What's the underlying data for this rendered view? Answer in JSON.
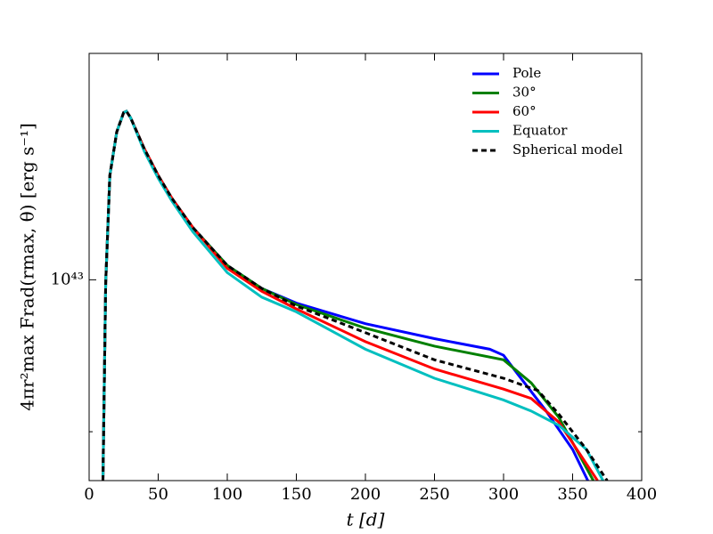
{
  "chart_data": {
    "type": "line",
    "xlabel": "t [d]",
    "ylabel": "4πr²max Frad(rmax, θ) [erg s⁻¹]",
    "xlim": [
      0,
      400
    ],
    "xticks": [
      0,
      50,
      100,
      150,
      200,
      250,
      300,
      350,
      400
    ],
    "ylim": [
      8.7e+42,
      1.17e+43
    ],
    "yticks": [
      {
        "value": 1e+43,
        "label": "10⁴³"
      }
    ],
    "yticks_minor": [
      9e+42
    ],
    "log_y": true,
    "grid": false,
    "legend": "upper right",
    "series": [
      {
        "name": "Pole",
        "color": "#0000ff",
        "linestyle": "solid",
        "x": [
          10,
          12,
          15,
          20,
          25,
          27,
          30,
          40,
          50,
          60,
          75,
          100,
          125,
          150,
          200,
          250,
          290,
          300,
          310,
          330,
          350,
          361
        ],
        "values": [
          8.7e+42,
          9.98e+42,
          1.075e+43,
          1.108e+43,
          1.123e+43,
          1.124e+43,
          1.119e+43,
          1.095e+43,
          1.075e+43,
          1.058e+43,
          1.037e+43,
          1.01e+43,
          9.94e+42,
          9.84e+42,
          9.7e+42,
          9.6e+42,
          9.53e+42,
          9.49e+42,
          9.37e+42,
          9.14e+42,
          8.89e+42,
          8.7e+42
        ]
      },
      {
        "name": "30°",
        "color": "#008000",
        "linestyle": "solid",
        "x": [
          10,
          12,
          15,
          20,
          25,
          27,
          30,
          40,
          50,
          60,
          75,
          100,
          125,
          150,
          200,
          250,
          300,
          320,
          340,
          365
        ],
        "values": [
          8.7e+42,
          9.98e+42,
          1.075e+43,
          1.108e+43,
          1.123e+43,
          1.124e+43,
          1.119e+43,
          1.095e+43,
          1.075e+43,
          1.058e+43,
          1.037e+43,
          1.01e+43,
          9.94e+42,
          9.83e+42,
          9.67e+42,
          9.55e+42,
          9.46e+42,
          9.31e+42,
          9.09e+42,
          8.7e+42
        ]
      },
      {
        "name": "60°",
        "color": "#ff0000",
        "linestyle": "solid",
        "x": [
          10,
          12,
          15,
          20,
          25,
          27,
          30,
          40,
          50,
          60,
          75,
          100,
          125,
          150,
          200,
          250,
          300,
          320,
          340,
          368
        ],
        "values": [
          8.7e+42,
          9.98e+42,
          1.075e+43,
          1.108e+43,
          1.123e+43,
          1.124e+43,
          1.119e+43,
          1.095e+43,
          1.075e+43,
          1.058e+43,
          1.037e+43,
          1.008e+43,
          9.92e+42,
          9.8e+42,
          9.58e+42,
          9.4e+42,
          9.27e+42,
          9.21e+42,
          9.06e+42,
          8.7e+42
        ]
      },
      {
        "name": "Equator",
        "color": "#00bfbf",
        "linestyle": "solid",
        "x": [
          10,
          12,
          15,
          20,
          25,
          27,
          30,
          40,
          50,
          60,
          75,
          100,
          125,
          150,
          200,
          250,
          300,
          320,
          340,
          360,
          372
        ],
        "values": [
          8.7e+42,
          9.98e+42,
          1.075e+43,
          1.108e+43,
          1.123e+43,
          1.124e+43,
          1.119e+43,
          1.093e+43,
          1.073e+43,
          1.056e+43,
          1.034e+43,
          1.005e+43,
          9.88e+42,
          9.78e+42,
          9.53e+42,
          9.34e+42,
          9.2e+42,
          9.13e+42,
          9.04e+42,
          8.89e+42,
          8.7e+42
        ]
      },
      {
        "name": "Spherical model",
        "color": "#000000",
        "linestyle": "dashed",
        "x": [
          10,
          12,
          15,
          20,
          25,
          27,
          30,
          40,
          50,
          60,
          75,
          100,
          125,
          150,
          175,
          200,
          250,
          300,
          325,
          340,
          360,
          375
        ],
        "values": [
          8.7e+42,
          9.98e+42,
          1.075e+43,
          1.108e+43,
          1.123e+43,
          1.124e+43,
          1.119e+43,
          1.095e+43,
          1.075e+43,
          1.058e+43,
          1.037e+43,
          1.01e+43,
          9.94e+42,
          9.82e+42,
          9.73e+42,
          9.64e+42,
          9.46e+42,
          9.34e+42,
          9.26e+42,
          9.11e+42,
          8.89e+42,
          8.7e+42
        ]
      }
    ]
  }
}
